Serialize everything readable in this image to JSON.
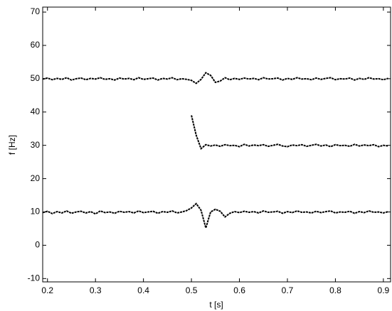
{
  "chart_data": {
    "type": "line",
    "xlabel": "t [s]",
    "ylabel": "f [Hz]",
    "x": [
      0.19,
      0.2,
      0.21,
      0.22,
      0.23,
      0.24,
      0.25,
      0.26,
      0.27,
      0.28,
      0.29,
      0.3,
      0.31,
      0.32,
      0.33,
      0.34,
      0.35,
      0.36,
      0.37,
      0.38,
      0.39,
      0.4,
      0.41,
      0.42,
      0.43,
      0.44,
      0.45,
      0.46,
      0.47,
      0.48,
      0.49,
      0.5,
      0.51,
      0.52,
      0.53,
      0.54,
      0.55,
      0.56,
      0.57,
      0.58,
      0.59,
      0.6,
      0.61,
      0.62,
      0.63,
      0.64,
      0.65,
      0.66,
      0.67,
      0.68,
      0.69,
      0.7,
      0.71,
      0.72,
      0.73,
      0.74,
      0.75,
      0.76,
      0.77,
      0.78,
      0.79,
      0.8,
      0.81,
      0.82,
      0.83,
      0.84,
      0.85,
      0.86,
      0.87,
      0.88,
      0.89,
      0.9,
      0.91
    ],
    "series": [
      {
        "color": "#000000",
        "values": [
          49.9,
          50.2,
          49.7,
          50.1,
          49.8,
          50.3,
          49.6,
          50.0,
          50.2,
          49.7,
          50.1,
          49.9,
          50.3,
          49.8,
          50.0,
          49.6,
          50.2,
          49.9,
          50.1,
          49.7,
          50.3,
          49.8,
          50.0,
          50.2,
          49.6,
          50.1,
          49.9,
          50.3,
          49.7,
          50.0,
          49.8,
          49.5,
          48.6,
          49.8,
          51.8,
          51.0,
          48.9,
          49.3,
          50.3,
          49.7,
          50.1,
          49.8,
          50.2,
          49.9,
          50.1,
          49.7,
          50.3,
          49.9,
          50.0,
          50.2,
          49.6,
          50.1,
          49.8,
          50.3,
          49.9,
          50.0,
          49.7,
          50.2,
          49.8,
          50.1,
          50.3,
          49.7,
          50.0,
          49.9,
          50.2,
          49.6,
          50.1,
          49.8,
          50.3,
          49.9,
          50.0,
          49.7,
          50.1
        ]
      },
      {
        "color": "#000000",
        "values": [
          null,
          null,
          null,
          null,
          null,
          null,
          null,
          null,
          null,
          null,
          null,
          null,
          null,
          null,
          null,
          null,
          null,
          null,
          null,
          null,
          null,
          null,
          null,
          null,
          null,
          null,
          null,
          null,
          null,
          null,
          null,
          39,
          33,
          29,
          30.2,
          29.8,
          30.1,
          29.7,
          30.2,
          29.9,
          30.0,
          29.6,
          30.3,
          29.8,
          30.1,
          29.9,
          30.2,
          29.7,
          30.0,
          30.3,
          29.8,
          29.6,
          30.1,
          29.9,
          30.2,
          29.7,
          30.0,
          30.3,
          29.8,
          30.1,
          29.6,
          30.2,
          29.9,
          30.0,
          29.7,
          30.3,
          29.8,
          30.1,
          29.9,
          30.2,
          29.6,
          30.0,
          29.8
        ]
      },
      {
        "color": "#000000",
        "values": [
          9.8,
          10.2,
          9.5,
          10.1,
          9.7,
          10.3,
          9.6,
          10.0,
          10.2,
          9.7,
          10.1,
          9.4,
          10.3,
          9.8,
          10.0,
          9.6,
          10.2,
          9.9,
          10.1,
          9.7,
          10.3,
          9.8,
          10.0,
          10.2,
          9.6,
          10.1,
          9.9,
          10.3,
          9.7,
          10.0,
          10.4,
          11.2,
          12.5,
          10.5,
          5.2,
          10.0,
          10.8,
          10.2,
          8.5,
          9.6,
          10.1,
          9.8,
          10.2,
          9.9,
          10.1,
          9.7,
          10.3,
          9.9,
          10.0,
          10.2,
          9.6,
          10.1,
          9.8,
          10.3,
          9.9,
          10.0,
          9.7,
          10.2,
          9.8,
          10.1,
          10.3,
          9.7,
          10.0,
          9.9,
          10.2,
          9.6,
          10.1,
          9.8,
          10.3,
          9.9,
          10.0,
          9.7,
          10.1
        ]
      }
    ],
    "xlim": [
      0.19,
      0.915
    ],
    "ylim": [
      -11,
      71.5
    ],
    "xticks": [
      0.2,
      0.3,
      0.4,
      0.5,
      0.6,
      0.7,
      0.8,
      0.9
    ],
    "yticks": [
      -10,
      0,
      10,
      20,
      30,
      40,
      50,
      60,
      70
    ],
    "grid": false
  }
}
